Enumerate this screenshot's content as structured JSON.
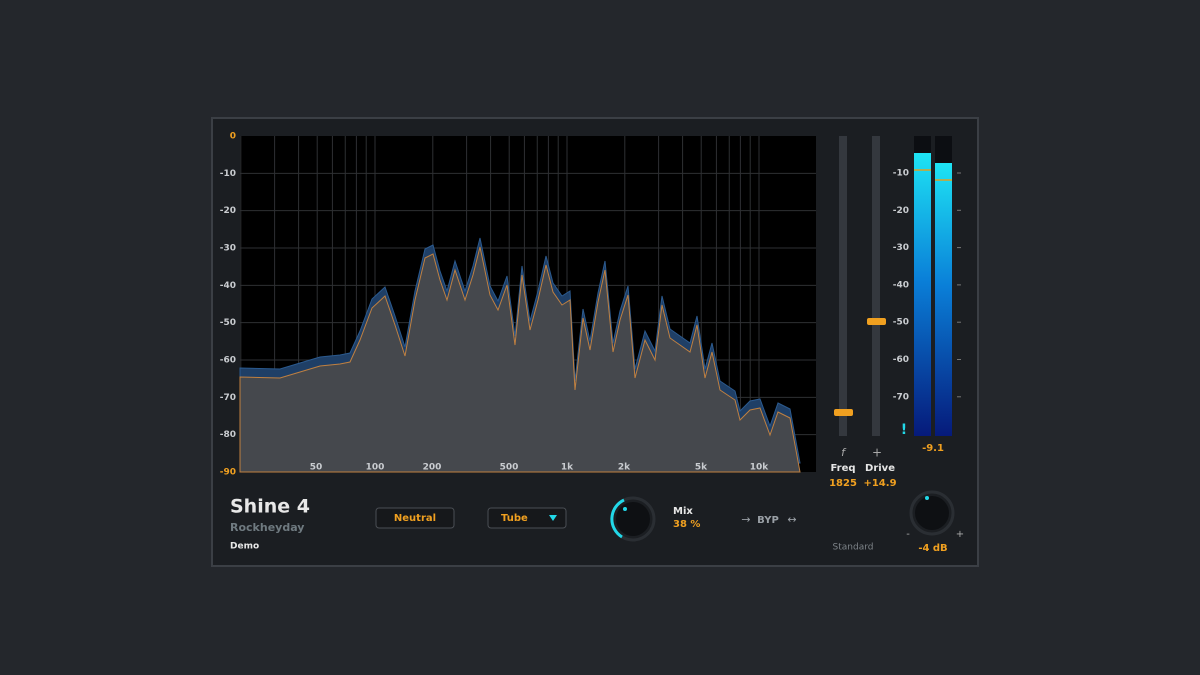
{
  "plugin": {
    "title": "Shine 4",
    "vendor": "Rockheyday",
    "license": "Demo"
  },
  "spectrum": {
    "db_labels": [
      "0",
      "-10",
      "-20",
      "-30",
      "-40",
      "-50",
      "-60",
      "-70",
      "-80",
      "-90"
    ],
    "freq_labels": [
      "50",
      "100",
      "200",
      "500",
      "1k",
      "2k",
      "5k",
      "10k"
    ]
  },
  "sliders": [
    {
      "symbol": "f",
      "label": "Freq",
      "value": "1825"
    },
    {
      "symbol": "+",
      "label": "Drive",
      "value": "+14.9"
    }
  ],
  "meter": {
    "labels": [
      "-10",
      "-20",
      "-30",
      "-40",
      "-50",
      "-60",
      "-70"
    ],
    "warning": "!",
    "readout": "-9.1"
  },
  "controls": {
    "mode": "Neutral",
    "type": "Tube",
    "mix_label": "Mix",
    "mix_value": "38 %",
    "bypass": "BYP",
    "standard": "Standard",
    "output": "-4 dB",
    "output_min": "-",
    "output_max": "+"
  }
}
